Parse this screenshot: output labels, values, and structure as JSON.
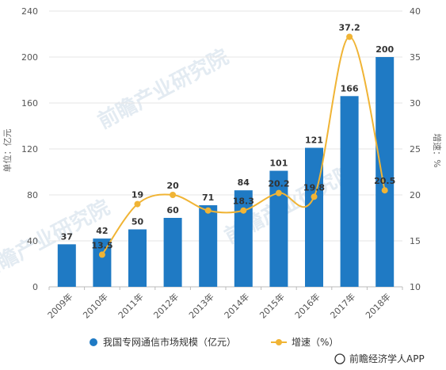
{
  "chart_data": {
    "type": "bar",
    "categories": [
      "2009年",
      "2010年",
      "2011年",
      "2012年",
      "2013年",
      "2014年",
      "2015年",
      "2016年",
      "2017年",
      "2018年"
    ],
    "series": [
      {
        "name": "我国专网通信市场规模（亿元）",
        "type": "bar",
        "axis": "left",
        "values": [
          37,
          42,
          50,
          60,
          71,
          84,
          101,
          121,
          166,
          200
        ]
      },
      {
        "name": "增速（%）",
        "type": "line",
        "axis": "right",
        "values": [
          null,
          13.5,
          19,
          20,
          18.3,
          18.3,
          20.2,
          19.8,
          37.2,
          20.5
        ]
      }
    ],
    "bar_labels": [
      "37",
      "42",
      "50",
      "60",
      "71",
      "84",
      "101",
      "121",
      "166",
      "200"
    ],
    "line_labels": [
      "",
      "13.5",
      "19",
      "20",
      "",
      "18.3",
      "20.2",
      "19.8",
      "37.2",
      "20.5"
    ],
    "ylabel": "单位：亿元",
    "y2label": "增速：%",
    "ylim": [
      0,
      240
    ],
    "yticks": [
      0,
      40,
      80,
      120,
      160,
      200,
      240
    ],
    "y2lim": [
      10,
      40
    ],
    "y2ticks": [
      10,
      15,
      20,
      25,
      30,
      35,
      40
    ],
    "grid": true,
    "legend_position": "bottom",
    "bar_color": "#1f7ac4",
    "line_color": "#f0b435"
  },
  "source": "前瞻经济学人APP",
  "watermark": "前瞻产业研究院"
}
